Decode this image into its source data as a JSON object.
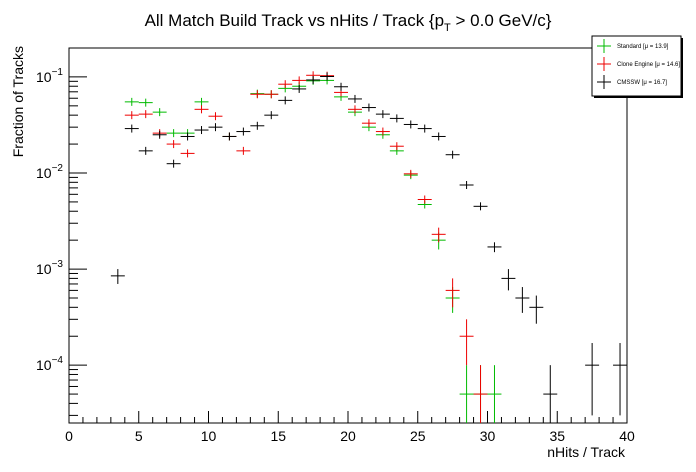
{
  "chart_data": {
    "type": "scatter",
    "title": "All Match Build Track vs nHits / Track {p",
    "title_sub": "T",
    "title_tail": " > 0.0 GeV/c}",
    "xlabel": "nHits / Track",
    "ylabel": "Fraction of Tracks",
    "xlim": [
      0,
      40
    ],
    "ylim": [
      2.5e-05,
      0.2
    ],
    "yscale": "log",
    "grid": false,
    "legend_position": "top-right",
    "x_ticks": [
      {
        "value": 0,
        "label": "0"
      },
      {
        "value": 5,
        "label": "5"
      },
      {
        "value": 10,
        "label": "10"
      },
      {
        "value": 15,
        "label": "15"
      },
      {
        "value": 20,
        "label": "20"
      },
      {
        "value": 25,
        "label": "25"
      },
      {
        "value": 30,
        "label": "30"
      },
      {
        "value": 35,
        "label": "35"
      },
      {
        "value": 40,
        "label": "40"
      }
    ],
    "y_ticks": [
      {
        "value": 0.1,
        "base": "10",
        "exp": "−1"
      },
      {
        "value": 0.01,
        "base": "10",
        "exp": "−2"
      },
      {
        "value": 0.001,
        "base": "10",
        "exp": "−3"
      },
      {
        "value": 0.0001,
        "base": "10",
        "exp": "−4"
      }
    ],
    "series": [
      {
        "name": "Standard",
        "stat": "[μ = 13.9]",
        "color": "#00bb00",
        "points": [
          {
            "x": 4.5,
            "y": 0.055,
            "err": 0
          },
          {
            "x": 5.5,
            "y": 0.054,
            "err": 0
          },
          {
            "x": 6.5,
            "y": 0.043,
            "err": 0
          },
          {
            "x": 7.5,
            "y": 0.026,
            "err": 0
          },
          {
            "x": 8.5,
            "y": 0.026,
            "err": 0
          },
          {
            "x": 9.5,
            "y": 0.055,
            "err": 0.003
          },
          {
            "x": 11.5,
            "y": 0.024,
            "err": 0
          },
          {
            "x": 13.5,
            "y": 0.067,
            "err": 0
          },
          {
            "x": 14.5,
            "y": 0.066,
            "err": 0
          },
          {
            "x": 15.5,
            "y": 0.076,
            "err": 0
          },
          {
            "x": 16.5,
            "y": 0.08,
            "err": 0
          },
          {
            "x": 17.5,
            "y": 0.091,
            "err": 0
          },
          {
            "x": 18.5,
            "y": 0.092,
            "err": 0
          },
          {
            "x": 19.5,
            "y": 0.062,
            "err": 0
          },
          {
            "x": 20.5,
            "y": 0.043,
            "err": 0
          },
          {
            "x": 21.5,
            "y": 0.03,
            "err": 0
          },
          {
            "x": 22.5,
            "y": 0.025,
            "err": 0
          },
          {
            "x": 23.5,
            "y": 0.017,
            "err": 0
          },
          {
            "x": 24.5,
            "y": 0.0095,
            "err": 0.0005
          },
          {
            "x": 25.5,
            "y": 0.0047,
            "err": 0.0004
          },
          {
            "x": 26.5,
            "y": 0.002,
            "err": 0.0004
          },
          {
            "x": 27.5,
            "y": 0.0005,
            "err": 0.00015
          },
          {
            "x": 28.5,
            "y": 5e-05,
            "err": 5e-05
          },
          {
            "x": 29.5,
            "y": 5e-05,
            "err": 5e-05
          },
          {
            "x": 30.5,
            "y": 5e-05,
            "err": 5e-05
          }
        ]
      },
      {
        "name": "Clone Engine",
        "stat": "[μ = 14.6]",
        "color": "#ee0000",
        "points": [
          {
            "x": 4.5,
            "y": 0.04,
            "err": 0
          },
          {
            "x": 5.5,
            "y": 0.041,
            "err": 0
          },
          {
            "x": 6.5,
            "y": 0.026,
            "err": 0
          },
          {
            "x": 7.5,
            "y": 0.02,
            "err": 0
          },
          {
            "x": 8.5,
            "y": 0.016,
            "err": 0
          },
          {
            "x": 9.5,
            "y": 0.046,
            "err": 0
          },
          {
            "x": 10.5,
            "y": 0.039,
            "err": 0
          },
          {
            "x": 11.5,
            "y": 0.024,
            "err": 0
          },
          {
            "x": 12.5,
            "y": 0.017,
            "err": 0
          },
          {
            "x": 13.5,
            "y": 0.066,
            "err": 0
          },
          {
            "x": 14.5,
            "y": 0.066,
            "err": 0
          },
          {
            "x": 15.5,
            "y": 0.084,
            "err": 0
          },
          {
            "x": 16.5,
            "y": 0.092,
            "err": 0
          },
          {
            "x": 17.5,
            "y": 0.104,
            "err": 0
          },
          {
            "x": 18.5,
            "y": 0.103,
            "err": 0
          },
          {
            "x": 19.5,
            "y": 0.069,
            "err": 0
          },
          {
            "x": 20.5,
            "y": 0.046,
            "err": 0
          },
          {
            "x": 21.5,
            "y": 0.033,
            "err": 0
          },
          {
            "x": 22.5,
            "y": 0.027,
            "err": 0
          },
          {
            "x": 23.5,
            "y": 0.019,
            "err": 0
          },
          {
            "x": 24.5,
            "y": 0.0098,
            "err": 0.0005
          },
          {
            "x": 25.5,
            "y": 0.0053,
            "err": 0.0005
          },
          {
            "x": 26.5,
            "y": 0.0023,
            "err": 0.0004
          },
          {
            "x": 27.5,
            "y": 0.0006,
            "err": 0.0002
          },
          {
            "x": 28.5,
            "y": 0.0002,
            "err": 0.0001
          },
          {
            "x": 29.5,
            "y": 5e-05,
            "err": 5e-05
          }
        ]
      },
      {
        "name": "CMSSW",
        "stat": "[μ = 16.7]",
        "color": "#000000",
        "points": [
          {
            "x": 3.5,
            "y": 0.00085,
            "err": 0.00015
          },
          {
            "x": 4.5,
            "y": 0.029,
            "err": 0
          },
          {
            "x": 5.5,
            "y": 0.017,
            "err": 0
          },
          {
            "x": 6.5,
            "y": 0.025,
            "err": 0
          },
          {
            "x": 7.5,
            "y": 0.0125,
            "err": 0
          },
          {
            "x": 8.5,
            "y": 0.024,
            "err": 0
          },
          {
            "x": 9.5,
            "y": 0.028,
            "err": 0
          },
          {
            "x": 10.5,
            "y": 0.03,
            "err": 0
          },
          {
            "x": 11.5,
            "y": 0.024,
            "err": 0
          },
          {
            "x": 12.5,
            "y": 0.027,
            "err": 0
          },
          {
            "x": 13.5,
            "y": 0.031,
            "err": 0
          },
          {
            "x": 14.5,
            "y": 0.04,
            "err": 0
          },
          {
            "x": 15.5,
            "y": 0.057,
            "err": 0
          },
          {
            "x": 16.5,
            "y": 0.075,
            "err": 0
          },
          {
            "x": 17.5,
            "y": 0.093,
            "err": 0
          },
          {
            "x": 18.5,
            "y": 0.101,
            "err": 0
          },
          {
            "x": 19.5,
            "y": 0.079,
            "err": 0
          },
          {
            "x": 20.5,
            "y": 0.059,
            "err": 0
          },
          {
            "x": 21.5,
            "y": 0.048,
            "err": 0
          },
          {
            "x": 22.5,
            "y": 0.041,
            "err": 0
          },
          {
            "x": 23.5,
            "y": 0.037,
            "err": 0
          },
          {
            "x": 24.5,
            "y": 0.032,
            "err": 0
          },
          {
            "x": 25.5,
            "y": 0.029,
            "err": 0
          },
          {
            "x": 26.5,
            "y": 0.024,
            "err": 0
          },
          {
            "x": 27.5,
            "y": 0.0155,
            "err": 0
          },
          {
            "x": 28.5,
            "y": 0.0075,
            "err": 0.0004
          },
          {
            "x": 29.5,
            "y": 0.0045,
            "err": 0.0003
          },
          {
            "x": 30.5,
            "y": 0.0017,
            "err": 0.0002
          },
          {
            "x": 31.5,
            "y": 0.0008,
            "err": 0.0002
          },
          {
            "x": 32.5,
            "y": 0.0005,
            "err": 0.00015
          },
          {
            "x": 33.5,
            "y": 0.0004,
            "err": 0.00013
          },
          {
            "x": 34.5,
            "y": 5e-05,
            "err": 5e-05
          },
          {
            "x": 37.5,
            "y": 0.0001,
            "err": 7e-05
          },
          {
            "x": 39.5,
            "y": 0.0001,
            "err": 7e-05
          }
        ]
      }
    ]
  }
}
